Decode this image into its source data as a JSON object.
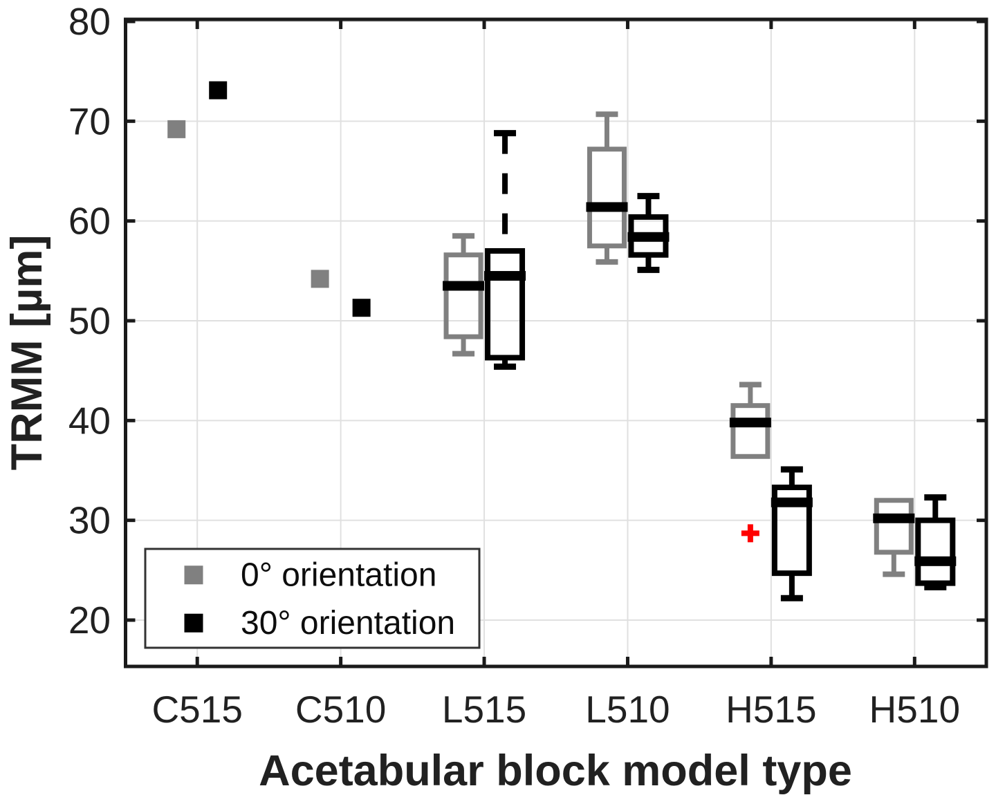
{
  "chart_data": {
    "type": "boxplot",
    "title": "",
    "xlabel": "Acetabular block model type",
    "ylabel": "TRMM [µm]",
    "categories": [
      "C515",
      "C510",
      "L515",
      "L510",
      "H515",
      "H510"
    ],
    "yticks": [
      20,
      30,
      40,
      50,
      60,
      70,
      80
    ],
    "ylim": [
      15.3,
      80.2
    ],
    "grid": true,
    "grid_color": "#e0e0e0",
    "axis_color": "#1a1a1a",
    "text_color": "#212121",
    "median_color": "#000000",
    "outlier_color": "#ff0000",
    "legend": {
      "position": "bottom-left",
      "entries": [
        {
          "label": "0° orientation",
          "color": "#808080"
        },
        {
          "label": "30° orientation",
          "color": "#000000"
        }
      ]
    },
    "series": [
      {
        "name": "0° orientation",
        "color": "#808080",
        "side": "left",
        "items": [
          {
            "category": "C515",
            "kind": "marker",
            "value": 69.2
          },
          {
            "category": "C510",
            "kind": "marker",
            "value": 54.2
          },
          {
            "category": "L515",
            "kind": "box",
            "whisker_high": 58.5,
            "q3": 56.6,
            "median": 53.5,
            "q1": 48.4,
            "whisker_low": 46.7
          },
          {
            "category": "L510",
            "kind": "box",
            "whisker_high": 70.7,
            "q3": 67.2,
            "median": 61.4,
            "q1": 57.5,
            "whisker_low": 55.9
          },
          {
            "category": "H515",
            "kind": "box",
            "whisker_high": 43.6,
            "q3": 41.5,
            "median": 39.8,
            "q1": 36.4,
            "whisker_low": 36.4,
            "outliers": [
              28.7
            ]
          },
          {
            "category": "H510",
            "kind": "box",
            "whisker_high": 32.0,
            "q3": 32.0,
            "median": 30.2,
            "q1": 26.8,
            "whisker_low": 24.6
          }
        ]
      },
      {
        "name": "30° orientation",
        "color": "#000000",
        "side": "right",
        "items": [
          {
            "category": "C515",
            "kind": "marker",
            "value": 73.1
          },
          {
            "category": "C510",
            "kind": "marker",
            "value": 51.3
          },
          {
            "category": "L515",
            "kind": "box",
            "whisker_high": 68.8,
            "q3": 57.0,
            "median": 54.5,
            "q1": 46.3,
            "whisker_low": 45.4,
            "dashed_upper_whisker": true
          },
          {
            "category": "L510",
            "kind": "box",
            "whisker_high": 62.5,
            "q3": 60.4,
            "median": 58.4,
            "q1": 56.6,
            "whisker_low": 55.1
          },
          {
            "category": "H515",
            "kind": "box",
            "whisker_high": 35.1,
            "q3": 33.3,
            "median": 31.8,
            "q1": 24.7,
            "whisker_low": 22.2
          },
          {
            "category": "H510",
            "kind": "box",
            "whisker_high": 32.3,
            "q3": 30.0,
            "median": 25.9,
            "q1": 23.7,
            "whisker_low": 23.3
          }
        ]
      }
    ]
  }
}
